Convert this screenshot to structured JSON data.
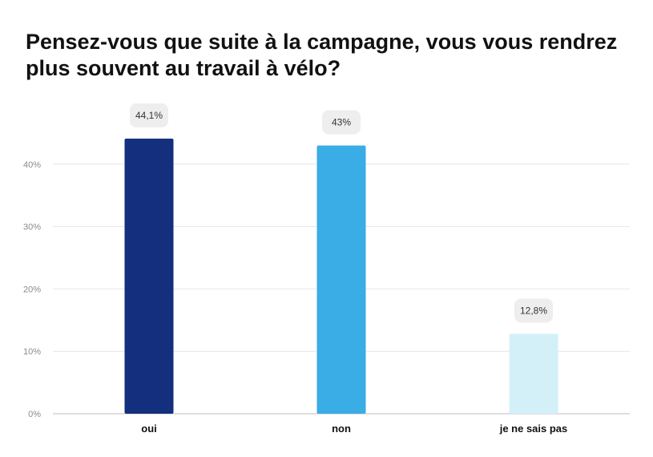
{
  "chart_data": {
    "type": "bar",
    "title": "Pensez-vous que suite à la campagne, vous vous rendrez plus souvent au travail à vélo?",
    "categories": [
      "oui",
      "non",
      "je ne sais pas"
    ],
    "values": [
      44.1,
      43,
      12.8
    ],
    "value_labels": [
      "44,1%",
      "43%",
      "12,8%"
    ],
    "colors": [
      "#132f7d",
      "#3aace6",
      "#d3f0f9"
    ],
    "ylim": [
      0,
      45
    ],
    "yticks": [
      0,
      10,
      20,
      30,
      40
    ],
    "ytick_labels": [
      "0%",
      "10%",
      "20%",
      "30%",
      "40%"
    ],
    "xlabel": "",
    "ylabel": "",
    "grid": true,
    "legend": "none"
  },
  "colors": {
    "grid": "#e6e6e6",
    "axis": "#bdbdbd",
    "label_bg": "#eeeeee"
  }
}
